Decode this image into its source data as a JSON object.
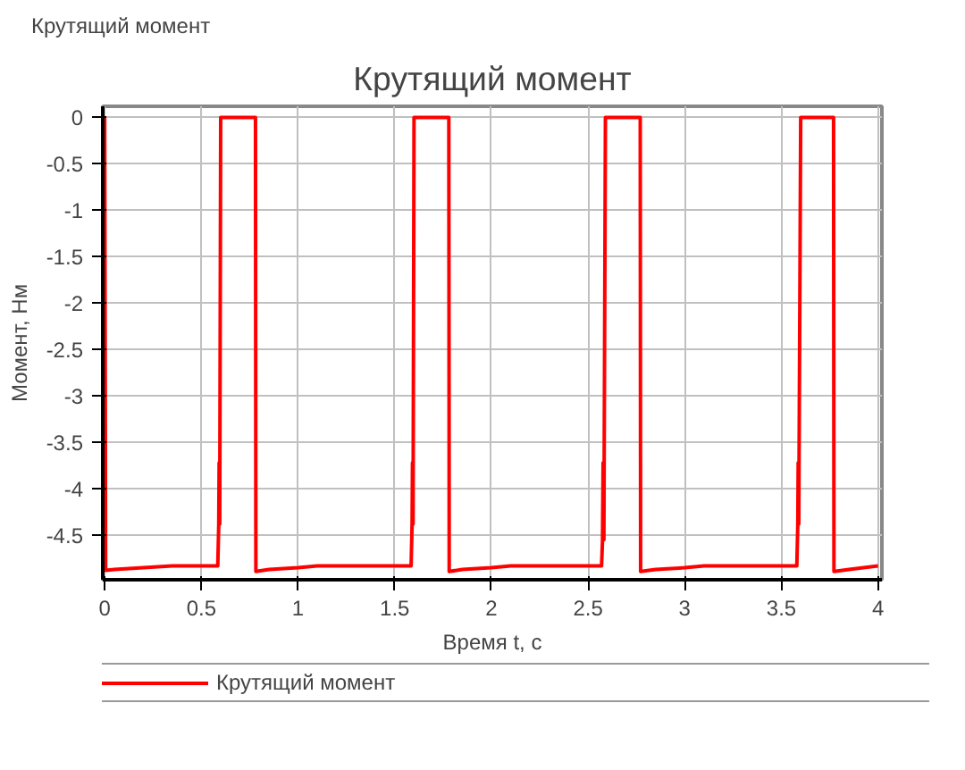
{
  "chart_data": {
    "type": "line",
    "title": "Крутящий момент",
    "xlabel": "Время t, с",
    "ylabel": "Момент, Нм",
    "annotations": [
      "Крутящий момент"
    ],
    "x": [
      0,
      0.005,
      0.05,
      0.2,
      0.35,
      0.585,
      0.59,
      0.592,
      0.595,
      0.6,
      0.78,
      0.782,
      0.85,
      1.0,
      1.1,
      1.585,
      1.59,
      1.592,
      1.595,
      1.6,
      1.78,
      1.782,
      1.85,
      2.0,
      2.1,
      2.57,
      2.575,
      2.578,
      2.582,
      2.59,
      2.77,
      2.772,
      2.85,
      3.0,
      3.1,
      3.58,
      3.585,
      3.587,
      3.59,
      3.6,
      3.77,
      3.772,
      3.85,
      4.0
    ],
    "series": [
      {
        "name": "Крутящий момент",
        "color": "#ff0000",
        "values": [
          0,
          -4.88,
          -4.87,
          -4.85,
          -4.83,
          -4.83,
          -4.38,
          -3.72,
          -4.38,
          0,
          0,
          -4.89,
          -4.87,
          -4.85,
          -4.83,
          -4.83,
          -4.38,
          -3.72,
          -4.38,
          0,
          0,
          -4.89,
          -4.87,
          -4.85,
          -4.83,
          -4.83,
          -4.55,
          -3.72,
          -4.55,
          0,
          0,
          -4.89,
          -4.87,
          -4.85,
          -4.83,
          -4.83,
          -4.38,
          -3.72,
          -4.38,
          0,
          0,
          -4.89,
          -4.87,
          -4.83
        ]
      }
    ],
    "xlim": [
      -0.01,
      4.02
    ],
    "ylim": [
      -4.98,
      0.12
    ],
    "xticks": [
      0,
      0.5,
      1,
      1.5,
      2,
      2.5,
      3,
      3.5,
      4
    ],
    "yticks": [
      0,
      -0.5,
      -1,
      -1.5,
      -2,
      -2.5,
      -3,
      -3.5,
      -4,
      -4.5
    ],
    "grid": true,
    "legend": "bottom",
    "line_style": "solid",
    "marker": "none"
  }
}
